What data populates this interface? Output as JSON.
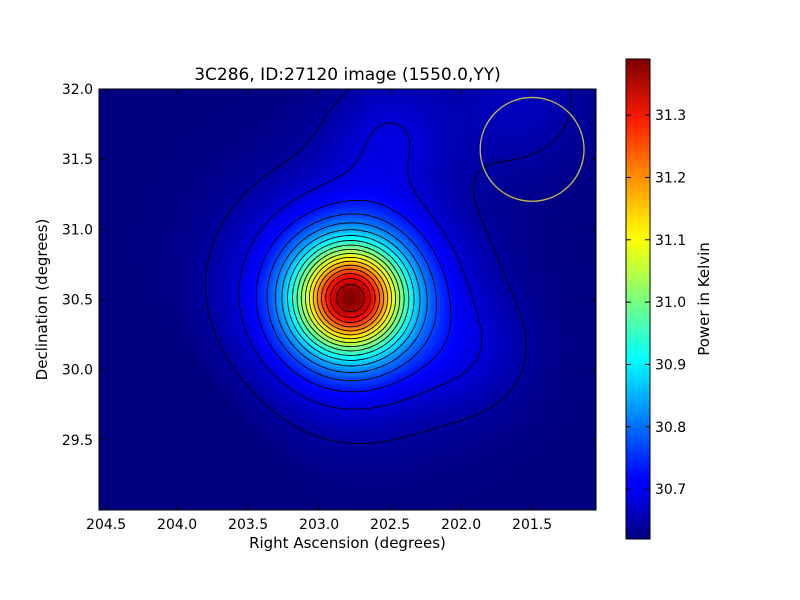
{
  "chart_data": {
    "type": "heatmap",
    "title": "3C286, ID:27120 image (1550.0,YY)",
    "xlabel": "Right Ascension (degrees)",
    "ylabel": "Declination (degrees)",
    "xlim": [
      204.55,
      201.05
    ],
    "ylim": [
      29.0,
      32.0
    ],
    "x_ticks": [
      "204.5",
      "204.0",
      "203.5",
      "203.0",
      "202.5",
      "202.0",
      "201.5"
    ],
    "y_ticks": [
      "29.5",
      "30.0",
      "30.5",
      "31.0",
      "31.5",
      "32.0"
    ],
    "colormap": "jet",
    "colorbar": {
      "label": "Power in Kelvin",
      "range": [
        30.62,
        31.39
      ],
      "ticks": [
        "30.7",
        "30.8",
        "30.9",
        "31.0",
        "31.1",
        "31.2",
        "31.3"
      ]
    },
    "peak": {
      "ra": 202.78,
      "dec": 30.51,
      "value": 31.39
    },
    "background_level": 30.62,
    "contours": {
      "count": 18,
      "color": "#000000"
    },
    "beam_circle": {
      "ra": 201.5,
      "dec": 31.57,
      "radius_deg": 0.37,
      "color": "#c9b84a"
    }
  }
}
